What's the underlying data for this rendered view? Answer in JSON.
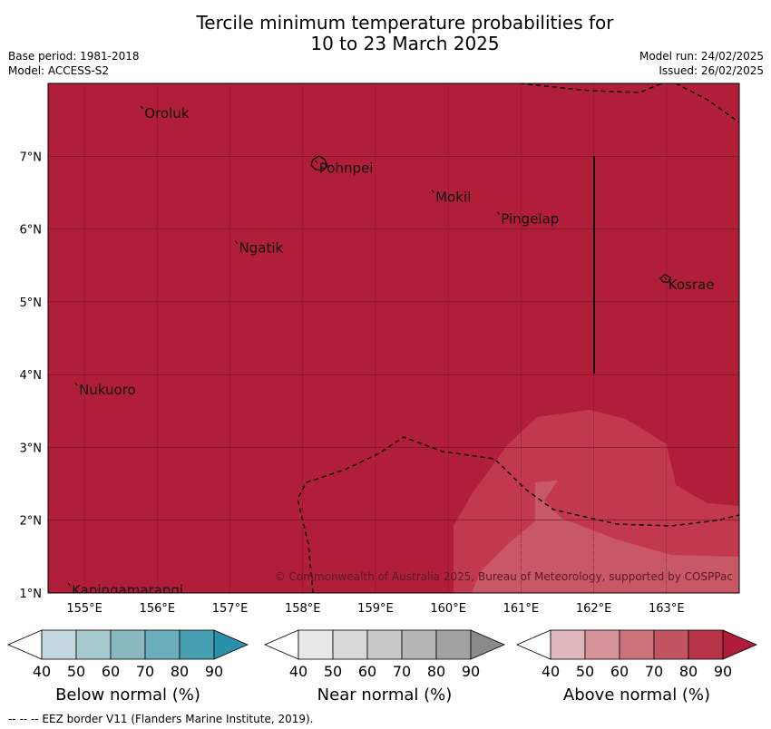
{
  "title": {
    "line1": "Tercile minimum temperature probabilities for",
    "line2": "10 to 23 March 2025"
  },
  "info": {
    "base_period": "Base period: 1981-2018",
    "model": "Model: ACCESS-S2",
    "model_run": "Model run: 24/02/2025",
    "issued": "Issued: 26/02/2025"
  },
  "map": {
    "lon_range": [
      154.5,
      164.0
    ],
    "lat_range": [
      1.0,
      8.0
    ],
    "lon_ticks": [
      "155°E",
      "156°E",
      "157°E",
      "158°E",
      "159°E",
      "160°E",
      "161°E",
      "162°E",
      "163°E"
    ],
    "lat_ticks": [
      "1°N",
      "2°N",
      "3°N",
      "4°N",
      "5°N",
      "6°N",
      "7°N"
    ],
    "islands": [
      {
        "name": "Oroluk",
        "lon": 155.8,
        "lat": 7.65
      },
      {
        "name": "Pohnpei",
        "lon": 158.2,
        "lat": 6.9
      },
      {
        "name": "Mokil",
        "lon": 159.8,
        "lat": 6.5
      },
      {
        "name": "Pingelap",
        "lon": 160.7,
        "lat": 6.2
      },
      {
        "name": "Ngatik",
        "lon": 157.1,
        "lat": 5.8
      },
      {
        "name": "Kosrae",
        "lon": 163.0,
        "lat": 5.3
      },
      {
        "name": "Nukuoro",
        "lon": 154.9,
        "lat": 3.85
      },
      {
        "name": "Kapingamarangi",
        "lon": 154.8,
        "lat": 1.1
      }
    ],
    "copyright": "© Commonwealth of Australia 2025, Bureau of Meteorology, supported by COSPPac",
    "colors": {
      "above_90": "#b01e3a",
      "above_80": "#c2394e",
      "above_70": "#c85866"
    }
  },
  "colorbars": [
    {
      "label": "Below normal (%)",
      "ticks": [
        "40",
        "50",
        "60",
        "70",
        "80",
        "90"
      ],
      "colors": [
        "#ffffff",
        "#c2d7de",
        "#a6c9cf",
        "#8ab8c1",
        "#6aaebb",
        "#47a0b2",
        "#2a8fa8"
      ]
    },
    {
      "label": "Near normal (%)",
      "ticks": [
        "40",
        "50",
        "60",
        "70",
        "80",
        "90"
      ],
      "colors": [
        "#ffffff",
        "#e8e8e8",
        "#d9d9d9",
        "#c9c9c9",
        "#b5b5b5",
        "#a2a2a2",
        "#8a8a8a"
      ]
    },
    {
      "label": "Above normal (%)",
      "ticks": [
        "40",
        "50",
        "60",
        "70",
        "80",
        "90"
      ],
      "colors": [
        "#ffffff",
        "#e0b6bd",
        "#d7949d",
        "#cd737d",
        "#c35563",
        "#b7334a",
        "#ae1c3a"
      ]
    }
  ],
  "footnote": "--  --  -- EEZ border V11 (Flanders Marine Institute, 2019)."
}
